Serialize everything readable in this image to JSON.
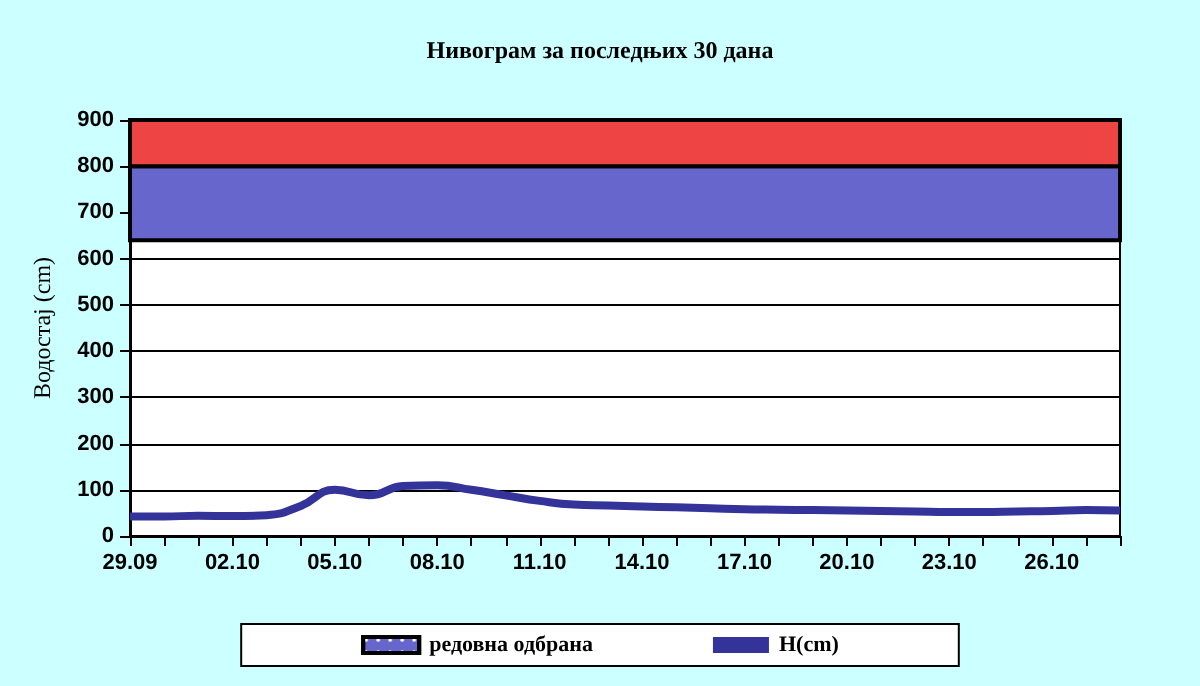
{
  "chart_data": {
    "type": "line",
    "title": "Нивограм за последњих 30 дана",
    "ylabel": "Водостај (cm)",
    "categories": [
      "29.09",
      null,
      null,
      "02.10",
      null,
      null,
      "05.10",
      null,
      null,
      "08.10",
      null,
      null,
      "11.10",
      null,
      null,
      "14.10",
      null,
      null,
      "17.10",
      null,
      null,
      "20.10",
      null,
      null,
      "23.10",
      null,
      null,
      "26.10",
      null,
      null
    ],
    "series": [
      {
        "name": "H(cm)",
        "color": "#333399",
        "values": [
          42,
          42,
          44,
          43,
          45,
          65,
          100,
          88,
          108,
          110,
          100,
          88,
          76,
          68,
          66,
          64,
          62,
          60,
          58,
          57,
          56,
          55,
          54,
          53,
          52,
          52,
          53,
          54,
          56,
          55
        ]
      }
    ],
    "ylim": [
      0,
      900
    ],
    "yticks": [
      0,
      100,
      200,
      300,
      400,
      500,
      600,
      700,
      800,
      900
    ],
    "grid": "y",
    "legend": "bottom",
    "bands": [
      {
        "axis": "y",
        "from": 640,
        "to": 800,
        "label": "редовна одбрана",
        "color": "#6666cc"
      },
      {
        "axis": "y",
        "from": 800,
        "to": 900,
        "color": "#ee4444"
      }
    ]
  }
}
